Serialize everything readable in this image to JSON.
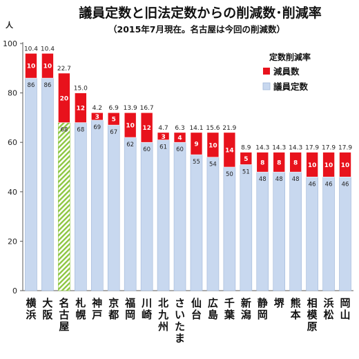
{
  "title": "議員定数と旧法定数からの削減数･削減率",
  "subtitle": "（2015年7月現在。名古屋は今回の削減数）",
  "colors": {
    "base": "#c8d8ef",
    "base_edge": "#9fb6d8",
    "reduction": "#e8121c",
    "hatch": "#8dc641"
  },
  "chart_data": {
    "type": "bar",
    "stacked": true,
    "ylabel": "人",
    "ylim": [
      0,
      100
    ],
    "yticks": [
      0,
      20,
      40,
      60,
      80,
      100
    ],
    "grid": false,
    "legend_title": "定数削減率",
    "legend_position": "top-right",
    "categories": [
      "横浜",
      "大阪",
      "名古屋",
      "札幌",
      "神戸",
      "京都",
      "福岡",
      "川崎",
      "北九州",
      "さいたま",
      "仙台",
      "広島",
      "千葉",
      "新潟",
      "静岡",
      "堺",
      "熊本",
      "相模原",
      "浜松",
      "岡山"
    ],
    "series": [
      {
        "name": "議員定数",
        "values": [
          86,
          86,
          68,
          68,
          69,
          67,
          62,
          60,
          61,
          60,
          55,
          54,
          50,
          51,
          48,
          48,
          48,
          46,
          46,
          46
        ]
      },
      {
        "name": "減員数",
        "values": [
          10,
          10,
          20,
          12,
          3,
          5,
          10,
          12,
          3,
          4,
          9,
          10,
          14,
          5,
          8,
          8,
          8,
          10,
          10,
          10
        ]
      }
    ],
    "rate_labels": [
      "10.4",
      "10.4",
      "22.7",
      "15.0",
      "4.2",
      "6.9",
      "13.9",
      "16.7",
      "4.7",
      "6.3",
      "14.1",
      "15.6",
      "21.9",
      "8.9",
      "14.3",
      "14.3",
      "14.3",
      "17.9",
      "17.9",
      "17.9"
    ],
    "hatched_category": "名古屋"
  }
}
